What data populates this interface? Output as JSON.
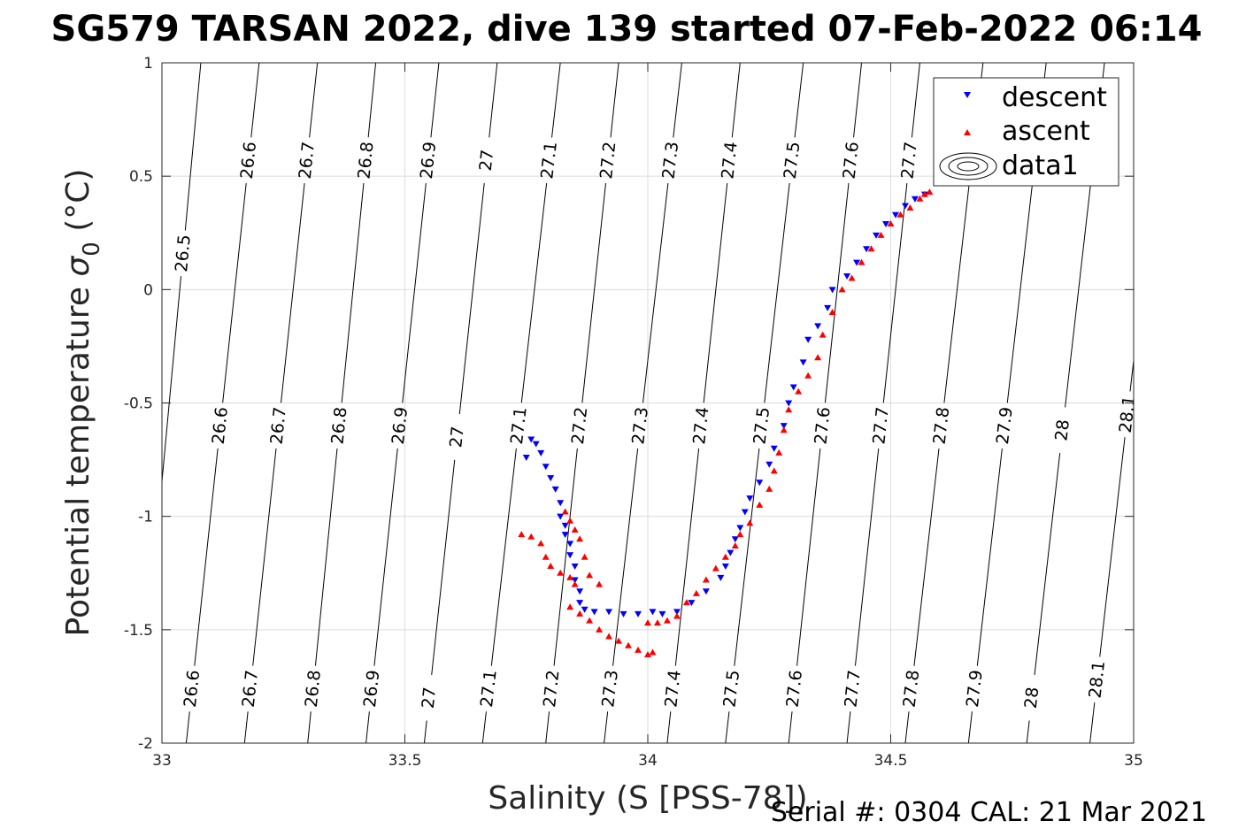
{
  "chart_data": {
    "type": "scatter",
    "title": "SG579 TARSAN 2022, dive 139 started 07-Feb-2022 06:14",
    "xlabel": "Salinity (S [PSS-78])",
    "ylabel_main": "Potential temperature ",
    "ylabel_sym": "σ",
    "ylabel_sub": "0",
    "ylabel_unit": " (°C)",
    "footer": "Serial #: 0304  CAL: 21 Mar 2021",
    "xlim": [
      33,
      35
    ],
    "ylim": [
      -2,
      1
    ],
    "xticks": [
      33,
      33.5,
      34,
      34.5,
      35
    ],
    "xtick_labels": [
      "33",
      "33.5",
      "34",
      "34.5",
      "35"
    ],
    "yticks": [
      -2,
      -1.5,
      -1,
      -0.5,
      0,
      0.5,
      1
    ],
    "ytick_labels": [
      "-2",
      "-1.5",
      "-1",
      "-0.5",
      "0",
      "0.5",
      "1"
    ],
    "grid": true,
    "legend_position": "top-right",
    "legend": [
      {
        "name": "descent",
        "marker": "triangle-down",
        "color": "#0000ff"
      },
      {
        "name": "ascent",
        "marker": "triangle-up",
        "color": "#ff0000"
      },
      {
        "name": "data1",
        "marker": "contour-ellipses",
        "color": "#000000"
      }
    ],
    "contours": [
      {
        "level": "26.5",
        "s_at_top": 33.08,
        "s_at_bottom": 32.95,
        "labels_theta": [
          0.16
        ]
      },
      {
        "level": "26.6",
        "s_at_top": 33.2,
        "s_at_bottom": 33.05,
        "labels_theta": [
          0.57,
          -0.6,
          -1.76
        ]
      },
      {
        "level": "26.7",
        "s_at_top": 33.32,
        "s_at_bottom": 33.17,
        "labels_theta": [
          0.57,
          -0.6,
          -1.76
        ]
      },
      {
        "level": "26.8",
        "s_at_top": 33.44,
        "s_at_bottom": 33.3,
        "labels_theta": [
          0.57,
          -0.6,
          -1.76
        ]
      },
      {
        "level": "26.9",
        "s_at_top": 33.57,
        "s_at_bottom": 33.42,
        "labels_theta": [
          0.57,
          -0.6,
          -1.76
        ]
      },
      {
        "level": "27",
        "s_at_top": 33.69,
        "s_at_bottom": 33.54,
        "labels_theta": [
          0.57,
          -0.65,
          -1.8
        ]
      },
      {
        "level": "27.1",
        "s_at_top": 33.82,
        "s_at_bottom": 33.66,
        "labels_theta": [
          0.57,
          -0.6,
          -1.76
        ]
      },
      {
        "level": "27.2",
        "s_at_top": 33.94,
        "s_at_bottom": 33.79,
        "labels_theta": [
          0.57,
          -0.6,
          -1.76
        ]
      },
      {
        "level": "27.3",
        "s_at_top": 34.07,
        "s_at_bottom": 33.91,
        "labels_theta": [
          0.57,
          -0.6,
          -1.76
        ]
      },
      {
        "level": "27.4",
        "s_at_top": 34.19,
        "s_at_bottom": 34.04,
        "labels_theta": [
          0.57,
          -0.6,
          -1.76
        ]
      },
      {
        "level": "27.5",
        "s_at_top": 34.32,
        "s_at_bottom": 34.16,
        "labels_theta": [
          0.57,
          -0.6,
          -1.76
        ]
      },
      {
        "level": "27.6",
        "s_at_top": 34.44,
        "s_at_bottom": 34.29,
        "labels_theta": [
          0.57,
          -0.6,
          -1.76
        ]
      },
      {
        "level": "27.7",
        "s_at_top": 34.56,
        "s_at_bottom": 34.41,
        "labels_theta": [
          0.57,
          -0.6,
          -1.76
        ]
      },
      {
        "level": "27.8",
        "s_at_top": 34.69,
        "s_at_bottom": 34.53,
        "labels_theta": [
          -0.6,
          -1.76
        ]
      },
      {
        "level": "27.9",
        "s_at_top": 34.82,
        "s_at_bottom": 34.66,
        "labels_theta": [
          -0.6,
          -1.76
        ]
      },
      {
        "level": "28",
        "s_at_top": 34.94,
        "s_at_bottom": 34.78,
        "labels_theta": [
          -0.62,
          -1.8
        ]
      },
      {
        "level": "28.1",
        "s_at_top": 35.07,
        "s_at_bottom": 34.91,
        "labels_theta": [
          -0.55,
          -1.72
        ]
      }
    ],
    "series": [
      {
        "name": "descent",
        "marker": "triangle-down",
        "color": "#0000ff",
        "points": [
          [
            33.75,
            -0.74
          ],
          [
            33.76,
            -0.66
          ],
          [
            33.77,
            -0.68
          ],
          [
            33.78,
            -0.72
          ],
          [
            33.79,
            -0.78
          ],
          [
            33.8,
            -0.83
          ],
          [
            33.81,
            -0.88
          ],
          [
            33.82,
            -0.94
          ],
          [
            33.82,
            -1.0
          ],
          [
            33.83,
            -1.04
          ],
          [
            33.83,
            -1.08
          ],
          [
            33.84,
            -1.12
          ],
          [
            33.84,
            -1.17
          ],
          [
            33.85,
            -1.22
          ],
          [
            33.85,
            -1.28
          ],
          [
            33.86,
            -1.33
          ],
          [
            33.86,
            -1.38
          ],
          [
            33.87,
            -1.41
          ],
          [
            33.89,
            -1.42
          ],
          [
            33.92,
            -1.42
          ],
          [
            33.95,
            -1.43
          ],
          [
            33.98,
            -1.43
          ],
          [
            34.01,
            -1.42
          ],
          [
            34.03,
            -1.43
          ],
          [
            34.06,
            -1.42
          ],
          [
            34.09,
            -1.38
          ],
          [
            34.12,
            -1.33
          ],
          [
            34.15,
            -1.27
          ],
          [
            34.16,
            -1.22
          ],
          [
            34.17,
            -1.16
          ],
          [
            34.18,
            -1.1
          ],
          [
            34.19,
            -1.05
          ],
          [
            34.2,
            -0.98
          ],
          [
            34.21,
            -0.92
          ],
          [
            34.23,
            -0.85
          ],
          [
            34.25,
            -0.77
          ],
          [
            34.26,
            -0.7
          ],
          [
            34.28,
            -0.6
          ],
          [
            34.29,
            -0.5
          ],
          [
            34.3,
            -0.43
          ],
          [
            34.32,
            -0.32
          ],
          [
            34.33,
            -0.22
          ],
          [
            34.35,
            -0.16
          ],
          [
            34.37,
            -0.08
          ],
          [
            34.38,
            0.0
          ],
          [
            34.41,
            0.06
          ],
          [
            34.43,
            0.12
          ],
          [
            34.45,
            0.18
          ],
          [
            34.47,
            0.24
          ],
          [
            34.49,
            0.29
          ],
          [
            34.51,
            0.33
          ],
          [
            34.53,
            0.37
          ],
          [
            34.55,
            0.4
          ],
          [
            34.57,
            0.42
          ]
        ]
      },
      {
        "name": "ascent",
        "marker": "triangle-up",
        "color": "#ff0000",
        "points": [
          [
            33.74,
            -1.08
          ],
          [
            33.76,
            -1.09
          ],
          [
            33.78,
            -1.12
          ],
          [
            33.79,
            -1.18
          ],
          [
            33.8,
            -1.22
          ],
          [
            33.82,
            -1.25
          ],
          [
            33.84,
            -1.27
          ],
          [
            33.85,
            -1.3
          ],
          [
            33.83,
            -0.98
          ],
          [
            33.84,
            -1.02
          ],
          [
            33.85,
            -1.06
          ],
          [
            33.86,
            -1.1
          ],
          [
            33.87,
            -1.18
          ],
          [
            33.88,
            -1.26
          ],
          [
            33.9,
            -1.3
          ],
          [
            33.84,
            -1.4
          ],
          [
            33.86,
            -1.43
          ],
          [
            33.88,
            -1.46
          ],
          [
            33.9,
            -1.5
          ],
          [
            33.92,
            -1.53
          ],
          [
            33.94,
            -1.55
          ],
          [
            33.96,
            -1.57
          ],
          [
            33.98,
            -1.59
          ],
          [
            34.0,
            -1.61
          ],
          [
            34.01,
            -1.6
          ],
          [
            34.0,
            -1.47
          ],
          [
            34.02,
            -1.47
          ],
          [
            34.04,
            -1.46
          ],
          [
            34.06,
            -1.44
          ],
          [
            34.08,
            -1.38
          ],
          [
            34.1,
            -1.34
          ],
          [
            34.12,
            -1.28
          ],
          [
            34.14,
            -1.23
          ],
          [
            34.16,
            -1.18
          ],
          [
            34.18,
            -1.13
          ],
          [
            34.19,
            -1.08
          ],
          [
            34.21,
            -1.03
          ],
          [
            34.23,
            -0.95
          ],
          [
            34.25,
            -0.88
          ],
          [
            34.26,
            -0.8
          ],
          [
            34.27,
            -0.72
          ],
          [
            34.28,
            -0.62
          ],
          [
            34.29,
            -0.53
          ],
          [
            34.31,
            -0.45
          ],
          [
            34.33,
            -0.38
          ],
          [
            34.35,
            -0.3
          ],
          [
            34.36,
            -0.2
          ],
          [
            34.38,
            -0.1
          ],
          [
            34.4,
            0.0
          ],
          [
            34.42,
            0.05
          ],
          [
            34.44,
            0.12
          ],
          [
            34.46,
            0.18
          ],
          [
            34.48,
            0.24
          ],
          [
            34.5,
            0.29
          ],
          [
            34.52,
            0.33
          ],
          [
            34.54,
            0.36
          ],
          [
            34.56,
            0.4
          ],
          [
            34.57,
            0.42
          ],
          [
            34.58,
            0.43
          ]
        ]
      }
    ]
  }
}
